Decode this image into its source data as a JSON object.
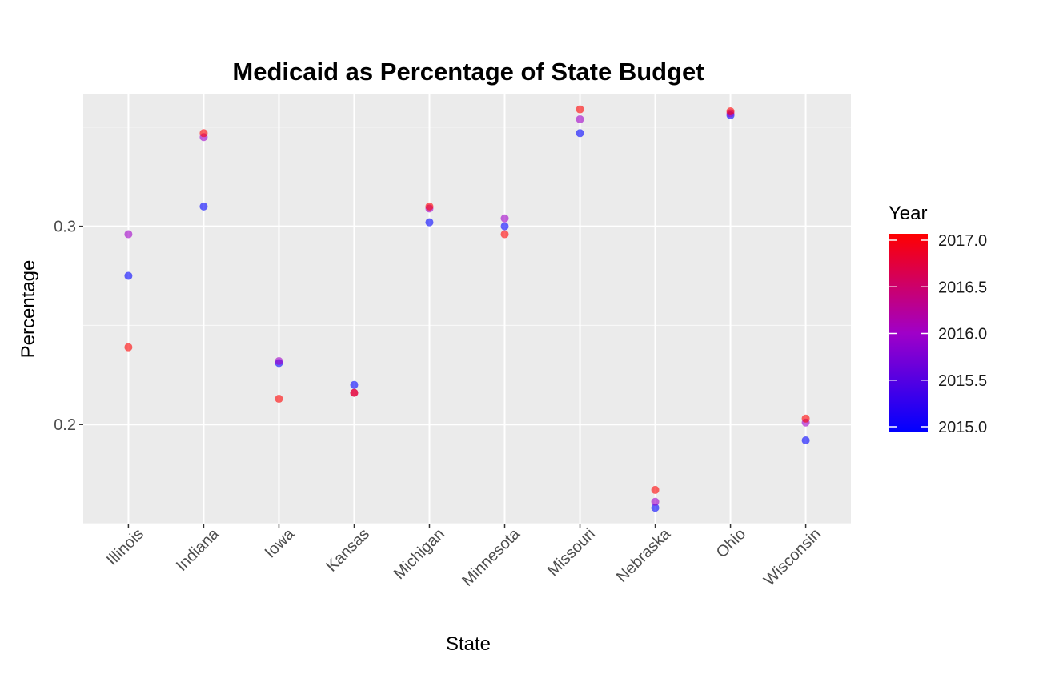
{
  "chart_data": {
    "type": "scatter",
    "title": "Medicaid as Percentage of State Budget",
    "xlabel": "State",
    "ylabel": "Percentage",
    "categories": [
      "Illinois",
      "Indiana",
      "Iowa",
      "Kansas",
      "Michigan",
      "Minnesota",
      "Missouri",
      "Nebraska",
      "Ohio",
      "Wisconsin"
    ],
    "ylim": [
      0.15,
      0.3665
    ],
    "yticks": [
      0.2,
      0.3
    ],
    "ytick_labels": [
      "0.2",
      "0.3"
    ],
    "grid": true,
    "legend": {
      "title": "Year",
      "placement": "right",
      "type": "colorbar",
      "range": [
        2015,
        2017
      ],
      "breaks": [
        2017.0,
        2016.5,
        2016.0,
        2015.5,
        2015.0
      ],
      "break_labels": [
        "2017.0",
        "2016.5",
        "2016.0",
        "2015.5",
        "2015.0"
      ],
      "low_color": "#0000ff",
      "high_color": "#ff0000"
    },
    "points": [
      {
        "state": "Illinois",
        "year": 2015,
        "value": 0.275
      },
      {
        "state": "Illinois",
        "year": 2016,
        "value": 0.296
      },
      {
        "state": "Illinois",
        "year": 2017,
        "value": 0.239
      },
      {
        "state": "Indiana",
        "year": 2015,
        "value": 0.31
      },
      {
        "state": "Indiana",
        "year": 2016,
        "value": 0.345
      },
      {
        "state": "Indiana",
        "year": 2017,
        "value": 0.347
      },
      {
        "state": "Iowa",
        "year": 2015,
        "value": 0.231
      },
      {
        "state": "Iowa",
        "year": 2016,
        "value": 0.232
      },
      {
        "state": "Iowa",
        "year": 2017,
        "value": 0.213
      },
      {
        "state": "Kansas",
        "year": 2015,
        "value": 0.22
      },
      {
        "state": "Kansas",
        "year": 2016,
        "value": 0.216
      },
      {
        "state": "Kansas",
        "year": 2017,
        "value": 0.216
      },
      {
        "state": "Michigan",
        "year": 2015,
        "value": 0.302
      },
      {
        "state": "Michigan",
        "year": 2016,
        "value": 0.309
      },
      {
        "state": "Michigan",
        "year": 2017,
        "value": 0.31
      },
      {
        "state": "Minnesota",
        "year": 2015,
        "value": 0.3
      },
      {
        "state": "Minnesota",
        "year": 2016,
        "value": 0.304
      },
      {
        "state": "Minnesota",
        "year": 2017,
        "value": 0.296
      },
      {
        "state": "Missouri",
        "year": 2015,
        "value": 0.347
      },
      {
        "state": "Missouri",
        "year": 2016,
        "value": 0.354
      },
      {
        "state": "Missouri",
        "year": 2017,
        "value": 0.359
      },
      {
        "state": "Nebraska",
        "year": 2015,
        "value": 0.158
      },
      {
        "state": "Nebraska",
        "year": 2016,
        "value": 0.161
      },
      {
        "state": "Nebraska",
        "year": 2017,
        "value": 0.167
      },
      {
        "state": "Ohio",
        "year": 2015,
        "value": 0.356
      },
      {
        "state": "Ohio",
        "year": 2016,
        "value": 0.357
      },
      {
        "state": "Ohio",
        "year": 2017,
        "value": 0.358
      },
      {
        "state": "Wisconsin",
        "year": 2015,
        "value": 0.192
      },
      {
        "state": "Wisconsin",
        "year": 2016,
        "value": 0.201
      },
      {
        "state": "Wisconsin",
        "year": 2017,
        "value": 0.203
      }
    ]
  },
  "colors": {
    "panel_background": "#ebebeb",
    "grid_major": "#ffffff",
    "point_opacity": 0.6
  }
}
